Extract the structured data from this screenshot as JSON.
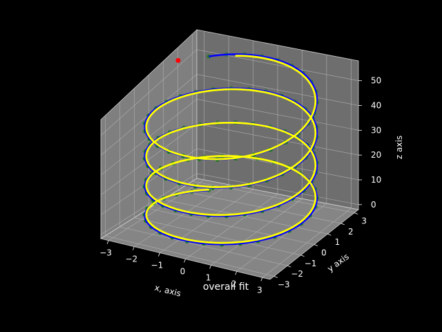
{
  "chart_data": {
    "type": "line3d",
    "title": "overall fit",
    "xlabel": "x, axis",
    "ylabel": "y axis",
    "zlabel": "z axis",
    "xlim": [
      -3.3,
      3.3
    ],
    "ylim": [
      -3.3,
      3.3
    ],
    "zlim": [
      -2,
      58
    ],
    "x_ticks": [
      -3,
      -2,
      -1,
      0,
      1,
      2,
      3
    ],
    "y_ticks": [
      -3,
      -2,
      -1,
      0,
      1,
      2,
      3
    ],
    "z_ticks": [
      0,
      10,
      20,
      30,
      40,
      50
    ],
    "x_tick_labels": [
      "−3",
      "−2",
      "−1",
      "0",
      "1",
      "2",
      "3"
    ],
    "y_tick_labels": [
      "−3",
      "−2",
      "−1",
      "0",
      "1",
      "2",
      "3"
    ],
    "z_tick_labels": [
      "0",
      "10",
      "20",
      "30",
      "40",
      "50"
    ],
    "grid": true,
    "series": [
      {
        "kind": "scatter",
        "marker": "circle",
        "color": "#008000",
        "note_color_family": "green markers along the helix",
        "helix": {
          "radius": 3,
          "z_start": 0,
          "z_end": 56,
          "turns": 4,
          "points": 120
        }
      },
      {
        "kind": "line",
        "color": "#0000ff",
        "helix": {
          "radius": 3,
          "z_start": 0,
          "z_end": 56,
          "turns": 4,
          "points": 400
        }
      },
      {
        "kind": "line",
        "color": "#ffff00",
        "helix": {
          "radius": 2.95,
          "z_start": 0.5,
          "z_end": 55,
          "turns": 3.95,
          "points": 400
        }
      },
      {
        "kind": "point",
        "color": "#ff0000",
        "x": -3.0,
        "y": 1.5,
        "z": 56
      }
    ]
  }
}
